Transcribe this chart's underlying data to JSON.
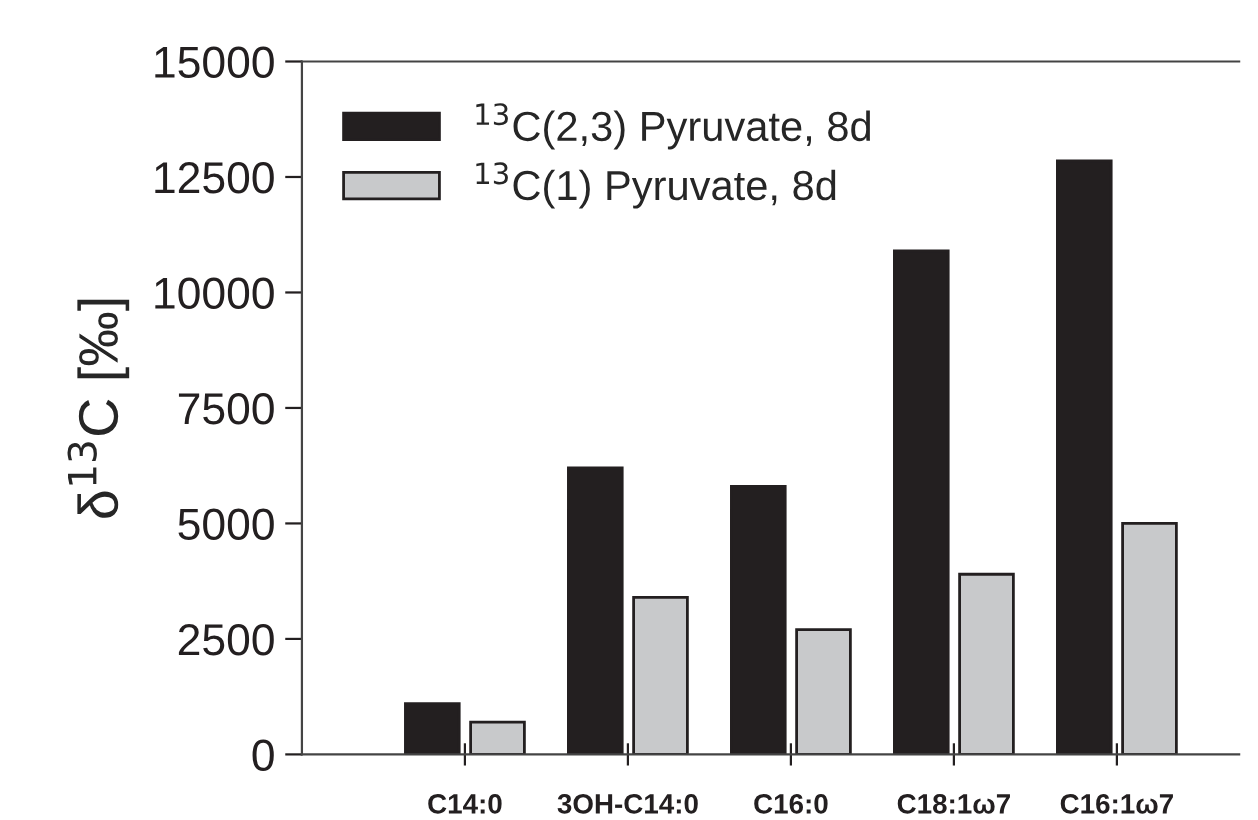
{
  "chart_data": {
    "type": "bar",
    "categories": [
      "C14:0",
      "3OH-C14:0",
      "C16:0",
      "C18:1ω7",
      "C16:1ω7"
    ],
    "series": [
      {
        "name": "$^{13}$C(2,3) Pyruvate, 8d",
        "color": "#231f20",
        "values": [
          1100,
          6200,
          5800,
          10900,
          12850
        ]
      },
      {
        "name": "$^{13}$C(1) Pyruvate, 8d",
        "color": "#c8c9cb",
        "values": [
          700,
          3400,
          2700,
          3900,
          5000
        ]
      }
    ],
    "ylabel": "δ$^{13}$C [‰]",
    "ylim": [
      0,
      15000
    ],
    "yticks": [
      0,
      2500,
      5000,
      7500,
      10000,
      12500,
      15000
    ],
    "grid": false,
    "legend": "top left"
  }
}
